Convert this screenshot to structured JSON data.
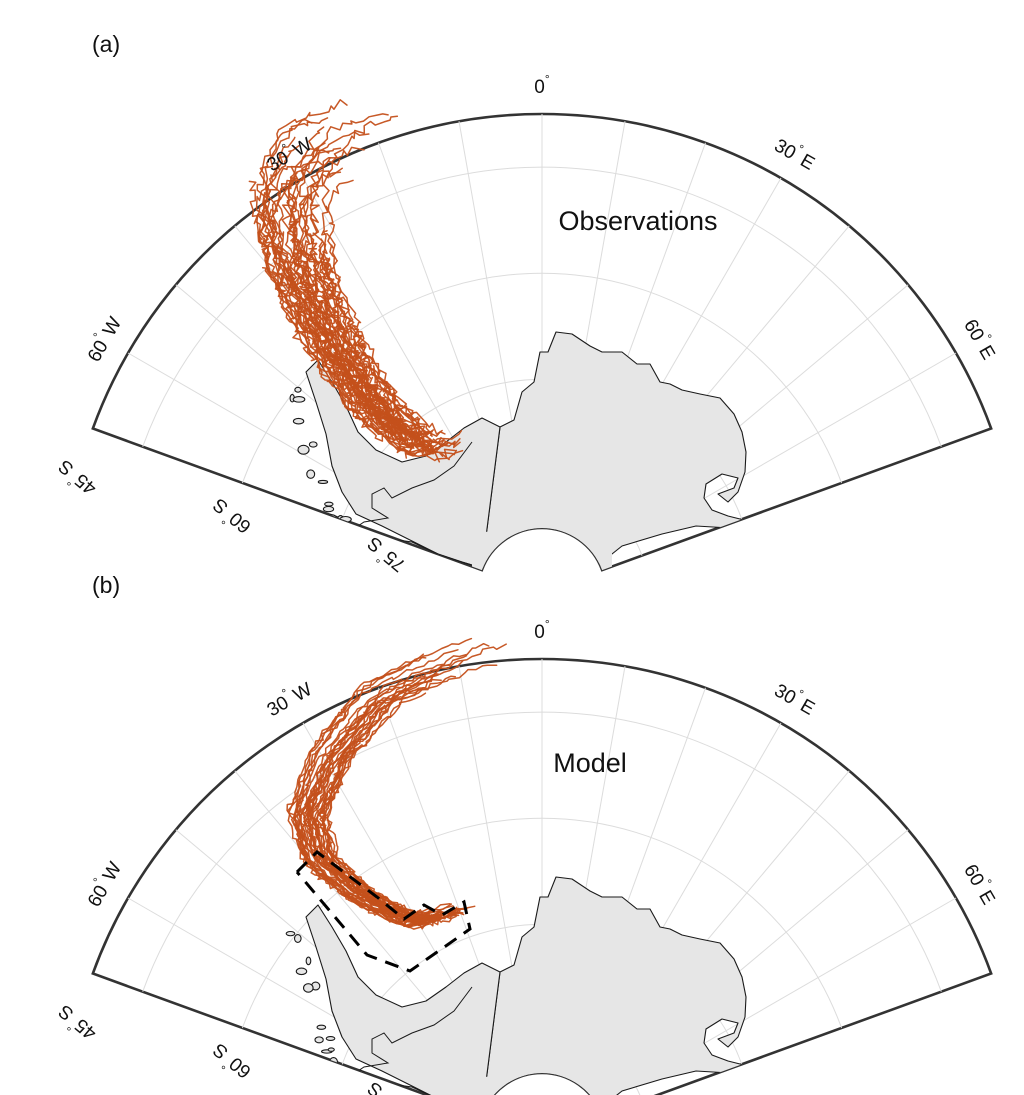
{
  "panels": [
    {
      "label": "(a)",
      "title": "Observations",
      "has_region_box": false,
      "track_count": 46,
      "seed": 7
    },
    {
      "label": "(b)",
      "title": "Model",
      "has_region_box": true,
      "track_count": 38,
      "seed": 19
    }
  ],
  "map": {
    "projection": "south-polar stereographic sector",
    "lon_range_deg": [
      -70,
      70
    ],
    "lat_outer_deg": -45,
    "lat_inner_deg": -84,
    "meridian_ticks": [
      {
        "lon": -60,
        "text": "60",
        "hemi": "W"
      },
      {
        "lon": -30,
        "text": "30",
        "hemi": "W"
      },
      {
        "lon": 0,
        "text": "0",
        "hemi": ""
      },
      {
        "lon": 30,
        "text": "30",
        "hemi": "E"
      },
      {
        "lon": 60,
        "text": "60",
        "hemi": "E"
      }
    ],
    "parallel_ticks": [
      {
        "lat": -45,
        "text": "45",
        "hemi": "S"
      },
      {
        "lat": -60,
        "text": "60",
        "hemi": "S"
      },
      {
        "lat": -75,
        "text": "75",
        "hemi": "S"
      }
    ],
    "degree_symbol": "°",
    "grid_meridians_deg": [
      -70,
      -60,
      -50,
      -40,
      -30,
      -20,
      -10,
      0,
      10,
      20,
      30,
      40,
      50,
      60,
      70
    ],
    "grid_parallels_deg": [
      -50,
      -60,
      -70,
      -80
    ],
    "colors": {
      "track": "#c4501b",
      "land": "#e6e6e6",
      "coast": "#1a1a1a",
      "frame": "#333333",
      "grid": "#dcdcdc"
    }
  }
}
